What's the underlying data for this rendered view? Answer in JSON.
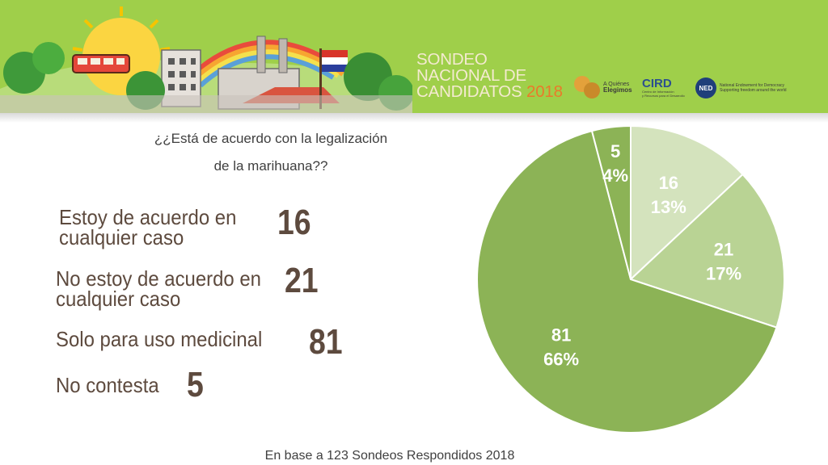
{
  "header": {
    "title_lines": [
      "SONDEO",
      "NACIONAL DE",
      "CANDIDATOS"
    ],
    "year": "2018",
    "logos": [
      {
        "name": "a-quienes-elegimos-logo",
        "text": [
          "A Quiénes",
          "Elegimos"
        ]
      },
      {
        "name": "cird-logo",
        "text": [
          "CIRD",
          "Centro de Información",
          "y Recursos para el Desarrollo"
        ]
      },
      {
        "name": "ned-logo",
        "text": [
          "NED",
          "National Endowment for Democracy",
          "Supporting freedom around the world"
        ]
      }
    ]
  },
  "question": {
    "line1": "¿¿Está de acuerdo con la legalización",
    "line2": "de la marihuana??"
  },
  "responses": [
    {
      "label_line1": "Estoy de acuerdo en",
      "label_line2": "cualquier caso",
      "value": "16"
    },
    {
      "label_line1": "No estoy de acuerdo en",
      "label_line2": "cualquier caso",
      "value": "21"
    },
    {
      "label_line1": "Solo para uso medicinal",
      "label_line2": "",
      "value": "81"
    },
    {
      "label_line1": "No contesta",
      "label_line2": "",
      "value": "5"
    }
  ],
  "footer": "En base a 123 Sondeos Respondidos 2018",
  "colors": {
    "banner": "#9fcf4a",
    "slice_16": "#d4e3bd",
    "slice_21": "#b9d394",
    "slice_81": "#8cb356",
    "slice_5": "#8cb356",
    "response_text": "#5d4a3e"
  },
  "chart_data": {
    "type": "pie",
    "title": "¿¿Está de acuerdo con la legalización de la marihuana??",
    "slices": [
      {
        "value": 16,
        "percent": "13%",
        "color": "#d4e3bd"
      },
      {
        "value": 21,
        "percent": "17%",
        "color": "#b9d394"
      },
      {
        "value": 81,
        "percent": "66%",
        "color": "#8cb356"
      },
      {
        "value": 5,
        "percent": "4%",
        "color": "#8cb356"
      }
    ],
    "total": 123,
    "start_angle_deg": 0,
    "direction": "clockwise"
  }
}
